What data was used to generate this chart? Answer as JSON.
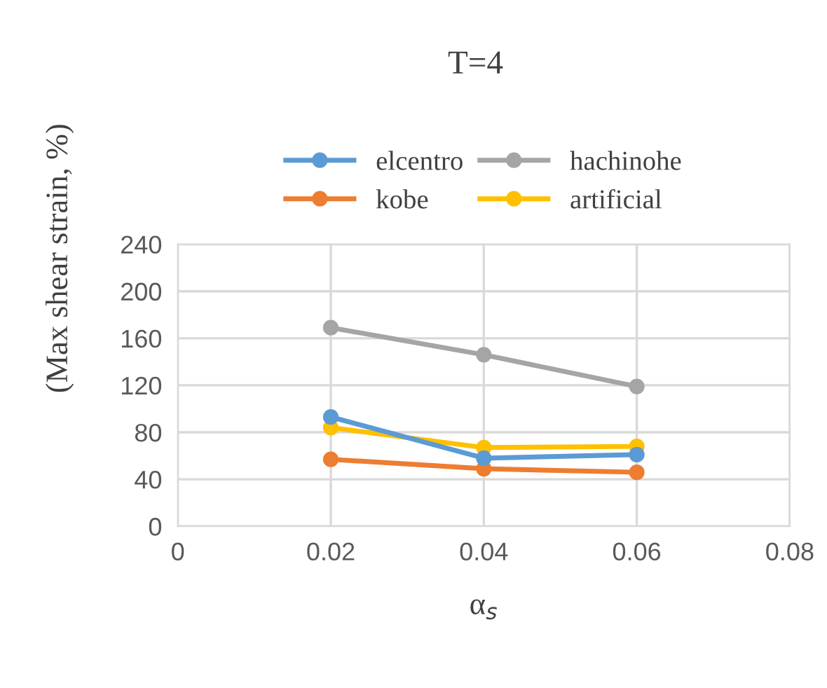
{
  "chart_data": {
    "type": "line",
    "title": "T=4",
    "xlabel": "α$_{s}$",
    "ylabel": "(Max shear strain, %)",
    "x": [
      0.02,
      0.04,
      0.06
    ],
    "series": [
      {
        "name": "elcentro",
        "color": "#5b9bd5",
        "values": [
          93,
          58,
          61
        ]
      },
      {
        "name": "kobe",
        "color": "#ed7d31",
        "values": [
          57,
          49,
          46
        ]
      },
      {
        "name": "hachinohe",
        "color": "#a5a5a5",
        "values": [
          169,
          146,
          119
        ]
      },
      {
        "name": "artificial",
        "color": "#ffc000",
        "values": [
          84,
          67,
          68
        ]
      }
    ],
    "xlim": [
      0,
      0.08
    ],
    "xticks": [
      {
        "value": 0,
        "label": "0"
      },
      0.02,
      0.04,
      0.06,
      0.08
    ],
    "ylim": [
      0,
      240
    ],
    "yticks": [
      0,
      40,
      80,
      120,
      160,
      200,
      240
    ],
    "grid": true,
    "legend": "top",
    "marker": "circle",
    "line_style": "solid"
  }
}
